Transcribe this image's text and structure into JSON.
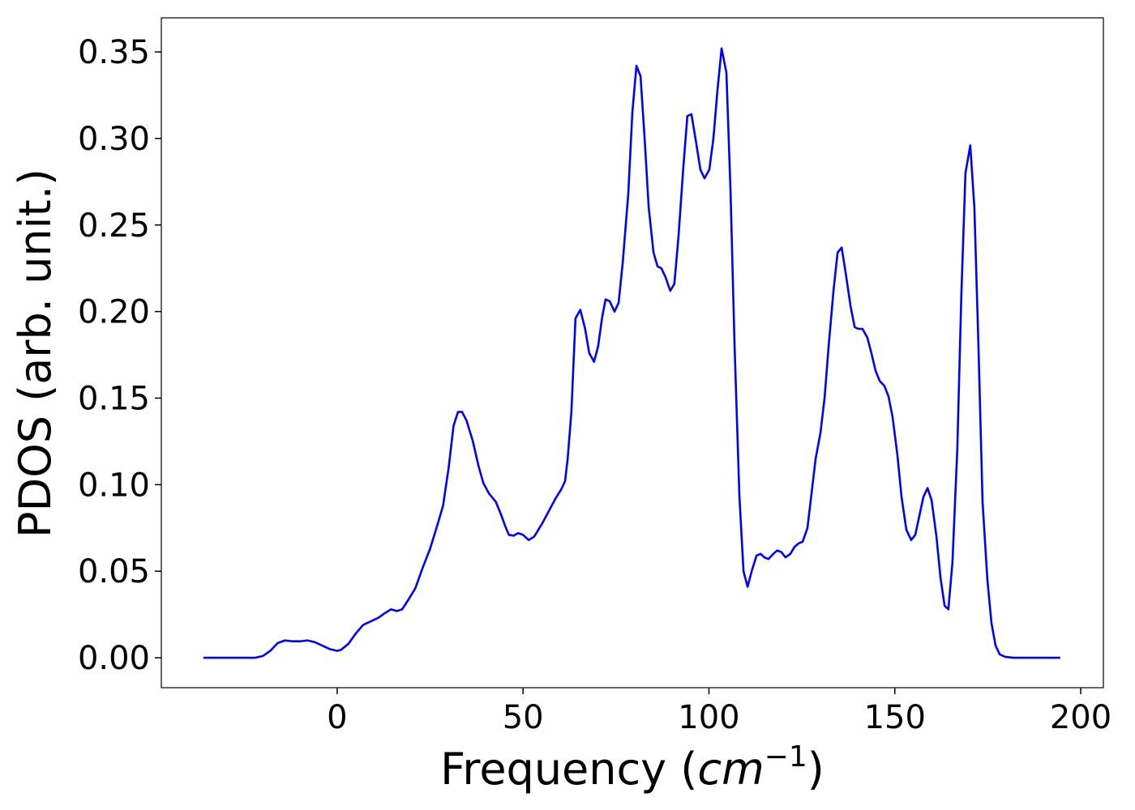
{
  "chart_data": {
    "type": "line",
    "ylabel": "PDOS (arb. unit.)",
    "xlabel": {
      "prefix": "Frequency (",
      "unit": "cm",
      "exponent": "−1",
      "suffix": ")"
    },
    "color": "#0000ff",
    "xlim": [
      -47.3,
      206.1
    ],
    "ylim": [
      -0.0173,
      0.3697
    ],
    "xticks": [
      0,
      50,
      100,
      150,
      200
    ],
    "yticks": [
      {
        "value": 0,
        "label": "0.00"
      },
      {
        "value": 0.05,
        "label": "0.05"
      },
      {
        "value": 0.1,
        "label": "0.10"
      },
      {
        "value": 0.15,
        "label": "0.15"
      },
      {
        "value": 0.2,
        "label": "0.20"
      },
      {
        "value": 0.25,
        "label": "0.25"
      },
      {
        "value": 0.3,
        "label": "0.30"
      },
      {
        "value": 0.35,
        "label": "0.35"
      }
    ],
    "x": [
      -36,
      -34,
      -32,
      -30,
      -28,
      -26,
      -24,
      -22,
      -20,
      -18,
      -16,
      -14,
      -12,
      -10,
      -8,
      -6,
      -4,
      -2,
      0,
      1,
      3,
      5,
      7,
      9,
      11,
      13,
      14.5,
      16,
      17.5,
      19,
      21,
      23,
      25,
      27,
      28.5,
      30,
      31.3,
      32.5,
      33.6,
      34.8,
      36.5,
      38,
      39.3,
      40.8,
      42.7,
      44.2,
      45.2,
      46.2,
      47.5,
      48.6,
      50,
      51.5,
      53,
      55,
      57,
      59,
      60.2,
      61.3,
      62,
      63,
      64.1,
      65.4,
      66.7,
      67.8,
      69.1,
      70.2,
      71.3,
      72.2,
      73.3,
      74.6,
      75.7,
      76.8,
      78.3,
      79.4,
      80.5,
      81.6,
      82.7,
      83.8,
      85.1,
      86.2,
      87.2,
      88.3,
      89.6,
      90.7,
      91.8,
      93.1,
      94.2,
      95.3,
      96.6,
      97.7,
      98.8,
      100.1,
      101.2,
      102.3,
      103.4,
      104.7,
      105.8,
      106.9,
      108.2,
      109.3,
      110.4,
      111.5,
      112.8,
      113.9,
      114.9,
      116,
      117.3,
      118.4,
      119.5,
      120.6,
      121.9,
      123,
      124.1,
      125.2,
      126.5,
      127.6,
      128.7,
      130,
      131.1,
      132.2,
      133.5,
      134.6,
      135.7,
      136.8,
      138.1,
      139.2,
      140.2,
      141.3,
      142.6,
      143.7,
      144.8,
      145.9,
      147.2,
      148.3,
      149.4,
      150.7,
      151.8,
      153.1,
      154.4,
      155.5,
      156.6,
      157.7,
      158.8,
      159.9,
      161.2,
      162.3,
      163.4,
      164.4,
      165.5,
      166.8,
      167.9,
      169,
      170.3,
      171.4,
      172.5,
      173.6,
      174.9,
      176,
      177.1,
      178.2,
      179.7,
      182,
      185,
      188,
      191,
      194.5
    ],
    "values": [
      0,
      0,
      0,
      0,
      0,
      0,
      0,
      0,
      0.001,
      0.004,
      0.0085,
      0.01,
      0.0095,
      0.0095,
      0.01,
      0.009,
      0.007,
      0.005,
      0.004,
      0.0045,
      0.008,
      0.014,
      0.019,
      0.021,
      0.023,
      0.026,
      0.028,
      0.027,
      0.028,
      0.033,
      0.04,
      0.052,
      0.063,
      0.077,
      0.088,
      0.11,
      0.134,
      0.142,
      0.142,
      0.137,
      0.125,
      0.111,
      0.101,
      0.095,
      0.09,
      0.082,
      0.076,
      0.071,
      0.0705,
      0.072,
      0.071,
      0.068,
      0.07,
      0.077,
      0.085,
      0.093,
      0.097,
      0.102,
      0.115,
      0.142,
      0.196,
      0.201,
      0.19,
      0.176,
      0.171,
      0.18,
      0.197,
      0.207,
      0.206,
      0.2,
      0.205,
      0.228,
      0.268,
      0.315,
      0.342,
      0.336,
      0.3,
      0.26,
      0.234,
      0.226,
      0.225,
      0.22,
      0.212,
      0.216,
      0.243,
      0.283,
      0.313,
      0.314,
      0.297,
      0.282,
      0.277,
      0.282,
      0.3,
      0.328,
      0.352,
      0.338,
      0.27,
      0.18,
      0.093,
      0.05,
      0.041,
      0.05,
      0.059,
      0.06,
      0.058,
      0.057,
      0.06,
      0.062,
      0.061,
      0.058,
      0.06,
      0.064,
      0.066,
      0.067,
      0.075,
      0.095,
      0.115,
      0.13,
      0.15,
      0.18,
      0.212,
      0.234,
      0.237,
      0.222,
      0.203,
      0.191,
      0.19,
      0.19,
      0.185,
      0.176,
      0.166,
      0.16,
      0.157,
      0.151,
      0.139,
      0.117,
      0.093,
      0.074,
      0.068,
      0.071,
      0.082,
      0.093,
      0.098,
      0.091,
      0.07,
      0.046,
      0.03,
      0.028,
      0.055,
      0.12,
      0.21,
      0.28,
      0.296,
      0.26,
      0.18,
      0.09,
      0.045,
      0.02,
      0.007,
      0.002,
      0.0005,
      0,
      0,
      0,
      0,
      0
    ]
  }
}
